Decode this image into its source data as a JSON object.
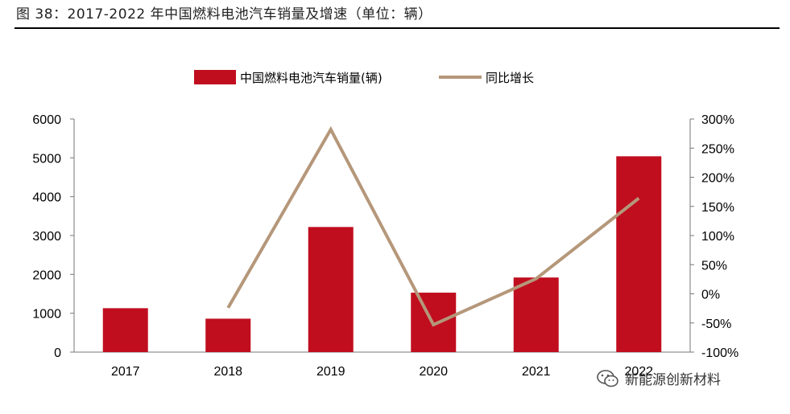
{
  "figure_title": "图 38：2017-2022 年中国燃料电池汽车销量及增速（单位：辆）",
  "watermark": "新能源创新材料",
  "watermark_icon": "wechat-icon",
  "chart_data": {
    "type": "bar",
    "categories": [
      "2017",
      "2018",
      "2019",
      "2020",
      "2021",
      "2022"
    ],
    "series": [
      {
        "name": "中国燃料电池汽车销量(辆)",
        "type": "bar",
        "axis": "left",
        "values": [
          1130,
          860,
          3220,
          1530,
          1920,
          5040
        ],
        "color": "#c00e1f"
      },
      {
        "name": "同比增长",
        "type": "line",
        "axis": "right",
        "values": [
          null,
          -24,
          282,
          -53,
          26,
          164
        ],
        "color": "#b5977a"
      }
    ],
    "y_left": {
      "min": 0,
      "max": 6000,
      "ticks": [
        "0",
        "1000",
        "2000",
        "3000",
        "4000",
        "5000",
        "6000"
      ]
    },
    "y_right": {
      "min": -100,
      "max": 300,
      "ticks": [
        "-100%",
        "-50%",
        "0%",
        "50%",
        "100%",
        "150%",
        "200%",
        "250%",
        "300%"
      ]
    },
    "grid": false,
    "legend_position": "top-center"
  }
}
